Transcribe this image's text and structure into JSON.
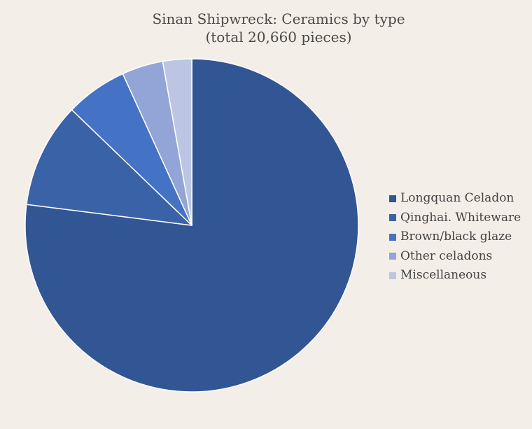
{
  "chart_data": {
    "type": "pie",
    "title": "Sinan Shipwreck: Ceramics by type",
    "subtitle": "(total 20,660 pieces)",
    "slices": [
      {
        "label": "Longquan Celadon",
        "value": 77.0,
        "color": "#325593"
      },
      {
        "label": "Qinghai. Whiteware",
        "value": 10.2,
        "color": "#3a62a7"
      },
      {
        "label": "Brown/black glaze",
        "value": 6.0,
        "color": "#4472c4"
      },
      {
        "label": "Other celadons",
        "value": 4.0,
        "color": "#92a5d6"
      },
      {
        "label": "Miscellaneous",
        "value": 2.8,
        "color": "#bcc6e4"
      }
    ],
    "start_angle_deg": 0,
    "direction": "clockwise",
    "slice_border_color": "#ffffff",
    "legend_position": "right"
  }
}
